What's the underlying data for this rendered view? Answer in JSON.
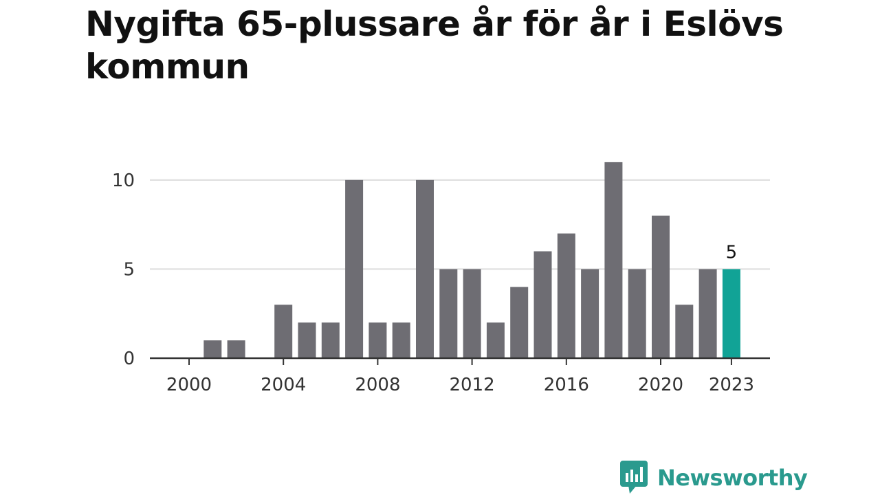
{
  "chart_data": {
    "type": "bar",
    "title": "Nygifta 65-plussare år för år i Eslövs kommun",
    "xlabel": "",
    "ylabel": "",
    "categories": [
      2000,
      2001,
      2002,
      2003,
      2004,
      2005,
      2006,
      2007,
      2008,
      2009,
      2010,
      2011,
      2012,
      2013,
      2014,
      2015,
      2016,
      2017,
      2018,
      2019,
      2020,
      2021,
      2022,
      2023
    ],
    "values": [
      0,
      1,
      1,
      0,
      3,
      2,
      2,
      10,
      2,
      2,
      10,
      5,
      5,
      2,
      4,
      6,
      7,
      5,
      11,
      5,
      8,
      3,
      5,
      5
    ],
    "ylim": [
      0,
      12
    ],
    "yticks": [
      0,
      5,
      10
    ],
    "xticks": [
      2000,
      2004,
      2008,
      2012,
      2016,
      2020,
      2023
    ],
    "highlight": {
      "category": 2023,
      "label": "5"
    },
    "grid": true,
    "legend": "none",
    "colors": {
      "bar": "#6e6d73",
      "highlight": "#11a396",
      "grid": "#dddddd",
      "axis": "#333333"
    }
  },
  "brand": {
    "name": "Newsworthy",
    "icon": "newsworthy-logo-icon",
    "color": "#2a9a8e"
  }
}
